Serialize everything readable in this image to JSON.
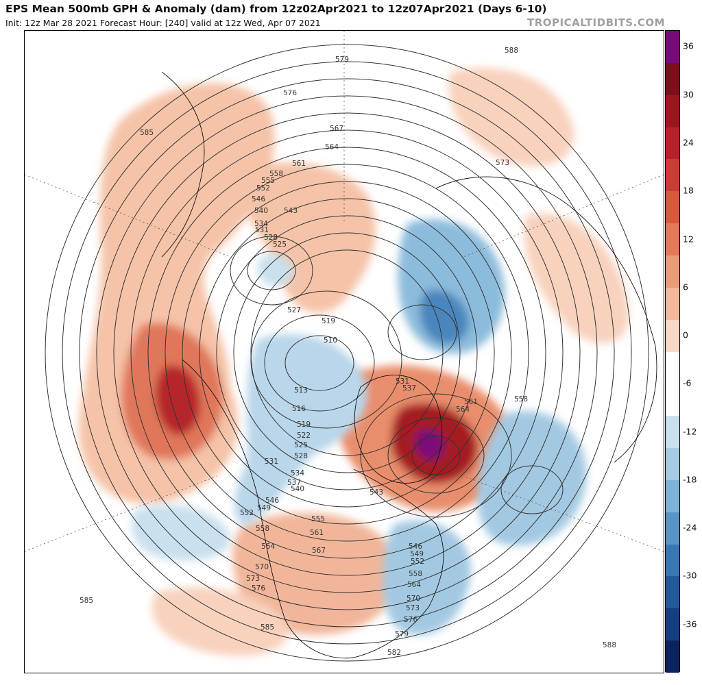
{
  "header": {
    "title": "EPS Mean 500mb GPH & Anomaly (dam) from 12z02Apr2021 to 12z07Apr2021 (Days 6-10)",
    "subtitle": "Init: 12z Mar 28 2021   Forecast Hour: [240]   valid at 12z Wed, Apr 07 2021",
    "credit": "TROPICALTIDBITS.COM"
  },
  "colorbar": {
    "ticks": [
      "36",
      "30",
      "24",
      "18",
      "12",
      "6",
      "0",
      "-6",
      "-12",
      "-18",
      "-24",
      "-30",
      "-36"
    ],
    "colors": [
      "#7a0a7a",
      "#7d0f1a",
      "#9c1620",
      "#b8212a",
      "#cc3b35",
      "#d9583e",
      "#e47a5a",
      "#eb9a7a",
      "#f2b99c",
      "#f8d9c6",
      "#ffffff",
      "#ffffff",
      "#c9e0ee",
      "#a6cbe2",
      "#7fb2d6",
      "#5895c6",
      "#3a78b3",
      "#245a9c",
      "#163e82",
      "#0b2460"
    ]
  },
  "map": {
    "contour_labels": [
      "576",
      "579",
      "585",
      "588",
      "567",
      "564",
      "573",
      "561",
      "558",
      "555",
      "552",
      "546",
      "540",
      "543",
      "534",
      "531",
      "528",
      "525",
      "527",
      "519",
      "510",
      "513",
      "516",
      "519",
      "522",
      "525",
      "528",
      "531",
      "534",
      "537",
      "540",
      "546",
      "549",
      "552",
      "555",
      "558",
      "561",
      "564",
      "567",
      "570",
      "573",
      "576",
      "585",
      "585",
      "582",
      "579",
      "576",
      "573",
      "570",
      "564",
      "558",
      "552",
      "549",
      "546",
      "543",
      "531",
      "537",
      "561",
      "564",
      "558",
      "588"
    ]
  }
}
